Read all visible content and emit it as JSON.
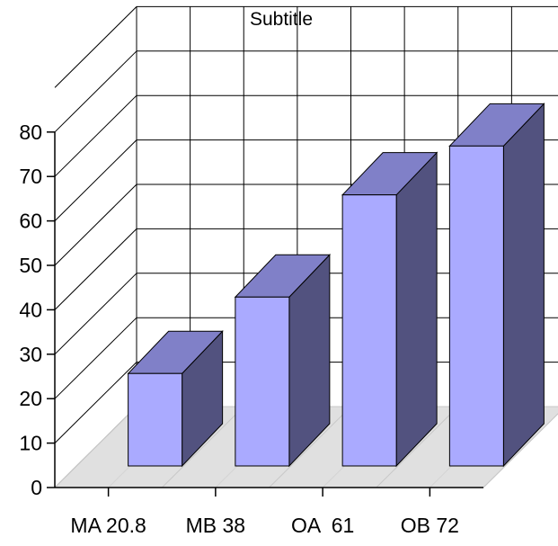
{
  "chart_data": {
    "type": "bar",
    "subtitle": "Subtitle",
    "categories": [
      "MA 20.8",
      "MB 38",
      "OA  61",
      "OB 72"
    ],
    "values": [
      20.8,
      38,
      61,
      72
    ],
    "ylim": [
      0,
      80
    ],
    "yticks": [
      "0",
      "10",
      "20",
      "30",
      "40",
      "50",
      "60",
      "70",
      "80"
    ],
    "grid": true,
    "style": "3d",
    "colors": {
      "front": "#aaaaff",
      "top": "#8080c8",
      "side": "#52527f",
      "floor": "#e0e0e0"
    }
  }
}
